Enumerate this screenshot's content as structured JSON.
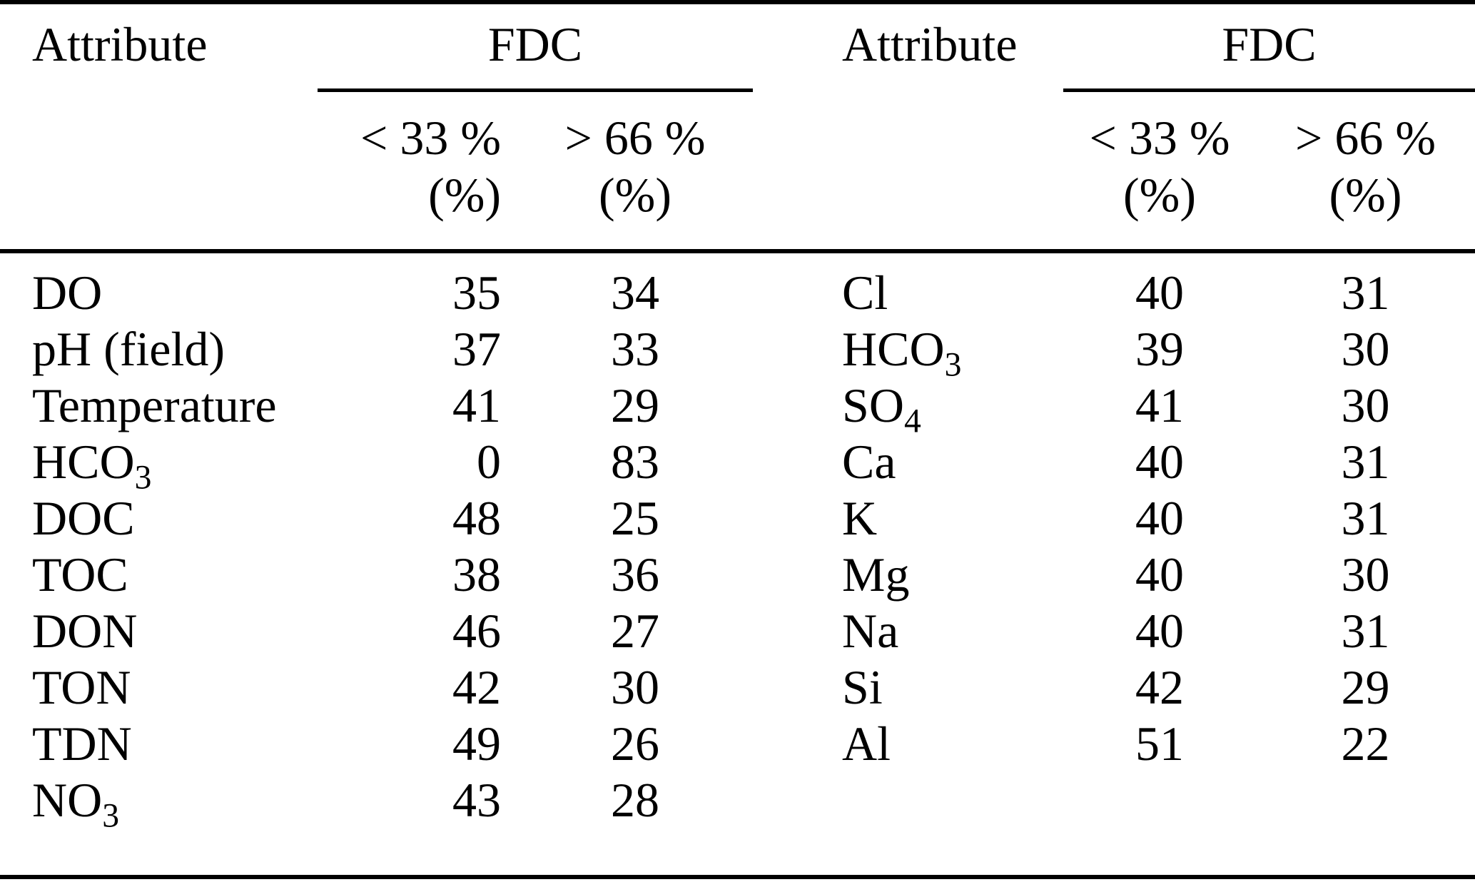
{
  "table": {
    "headers": {
      "attribute": "Attribute",
      "group": "FDC",
      "lt33": "< 33 %",
      "gt66": "> 66 %",
      "unit": "(%)"
    },
    "left_rows": [
      {
        "attribute": "DO",
        "lt33": "35",
        "gt66": "34"
      },
      {
        "attribute": "pH (field)",
        "lt33": "37",
        "gt66": "33"
      },
      {
        "attribute": "Temperature",
        "lt33": "41",
        "gt66": "29"
      },
      {
        "attribute": "HCO",
        "sub": "3",
        "lt33": "0",
        "gt66": "83"
      },
      {
        "attribute": "DOC",
        "lt33": "48",
        "gt66": "25"
      },
      {
        "attribute": "TOC",
        "lt33": "38",
        "gt66": "36"
      },
      {
        "attribute": "DON",
        "lt33": "46",
        "gt66": "27"
      },
      {
        "attribute": "TON",
        "lt33": "42",
        "gt66": "30"
      },
      {
        "attribute": "TDN",
        "lt33": "49",
        "gt66": "26"
      },
      {
        "attribute": "NO",
        "sub": "3",
        "lt33": "43",
        "gt66": "28"
      }
    ],
    "right_rows": [
      {
        "attribute": "Cl",
        "lt33": "40",
        "gt66": "31"
      },
      {
        "attribute": "HCO",
        "sub": "3",
        "lt33": "39",
        "gt66": "30"
      },
      {
        "attribute": "SO",
        "sub": "4",
        "lt33": "41",
        "gt66": "30"
      },
      {
        "attribute": "Ca",
        "lt33": "40",
        "gt66": "31"
      },
      {
        "attribute": "K",
        "lt33": "40",
        "gt66": "31"
      },
      {
        "attribute": "Mg",
        "lt33": "40",
        "gt66": "30"
      },
      {
        "attribute": "Na",
        "lt33": "40",
        "gt66": "31"
      },
      {
        "attribute": "Si",
        "lt33": "42",
        "gt66": "29"
      },
      {
        "attribute": "Al",
        "lt33": "51",
        "gt66": "22"
      }
    ]
  }
}
